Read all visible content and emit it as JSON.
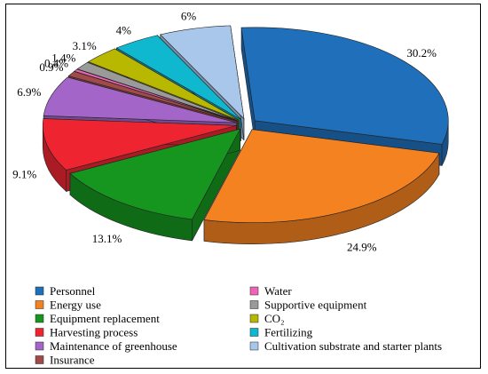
{
  "chart_data": {
    "type": "pie",
    "style": "3d-exploded",
    "title": "",
    "slices": [
      {
        "label": "Personnel",
        "value": 30.2,
        "display": "30.2%",
        "color": "#1f6fba"
      },
      {
        "label": "Energy use",
        "value": 24.9,
        "display": "24.9%",
        "color": "#f58220"
      },
      {
        "label": "Equipment replacement",
        "value": 13.1,
        "display": "13.1%",
        "color": "#16951f"
      },
      {
        "label": "Harvesting process",
        "value": 9.1,
        "display": "9.1%",
        "color": "#ee2530"
      },
      {
        "label": "Maintenance of greenhouse",
        "value": 6.9,
        "display": "6.9%",
        "color": "#a366c8"
      },
      {
        "label": "Insurance",
        "value": 0.9,
        "display": "0.9%",
        "color": "#a04a4a"
      },
      {
        "label": "Water",
        "value": 0.4,
        "display": "0.4%",
        "color": "#ee64b4"
      },
      {
        "label": "Supportive equipment",
        "value": 1.4,
        "display": "1.4%",
        "color": "#9a9a9a"
      },
      {
        "label": "CO₂",
        "value": 3.1,
        "display": "3.1%",
        "color": "#b8b800"
      },
      {
        "label": "Fertilizing",
        "value": 4.0,
        "display": "4%",
        "color": "#10b8cf"
      },
      {
        "label": "Cultivation substrate and starter plants",
        "value": 6.0,
        "display": "6%",
        "color": "#a9c7ea"
      }
    ],
    "legend": {
      "placement": "bottom",
      "columns": [
        [
          "Personnel",
          "Energy use",
          "Equipment replacement",
          "Harvesting process",
          "Maintenance of greenhouse",
          "Insurance"
        ],
        [
          "Water",
          "Supportive equipment",
          "CO₂",
          "Fertilizing",
          "Cultivation substrate and starter plants"
        ]
      ]
    }
  }
}
